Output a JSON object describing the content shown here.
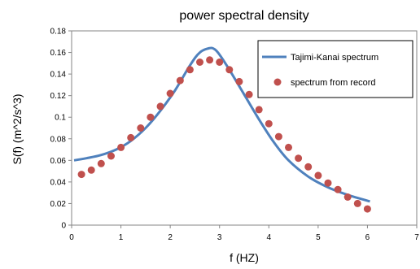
{
  "chart_data": {
    "type": "line",
    "title": "power spectral density",
    "xlabel": "f (HZ)",
    "ylabel": "S(f)   (m^2/s^3)",
    "xlim": [
      0,
      7
    ],
    "ylim": [
      0,
      0.18
    ],
    "x_ticks": [
      0,
      1,
      2,
      3,
      4,
      5,
      6,
      7
    ],
    "y_ticks": [
      0,
      0.02,
      0.04,
      0.06,
      0.08,
      0.1,
      0.12,
      0.14,
      0.16,
      0.18
    ],
    "x_tick_labels": [
      "0",
      "1",
      "2",
      "3",
      "4",
      "5",
      "6",
      "7"
    ],
    "y_tick_labels": [
      "0",
      "0.02",
      "0.04",
      "0.06",
      "0.08",
      "0.1",
      "0.12",
      "0.14",
      "0.16",
      "0.18"
    ],
    "grid": false,
    "legend_position": "top-right",
    "series": [
      {
        "name": "Tajimi-Kanai spectrum",
        "kind": "line",
        "color": "#4F81BD",
        "x": [
          0.05,
          0.3,
          0.6,
          0.9,
          1.2,
          1.5,
          1.8,
          2.1,
          2.4,
          2.6,
          2.8,
          2.9,
          3.0,
          3.2,
          3.5,
          3.8,
          4.1,
          4.4,
          4.8,
          5.2,
          5.6,
          6.05
        ],
        "y": [
          0.06,
          0.062,
          0.065,
          0.07,
          0.078,
          0.09,
          0.106,
          0.125,
          0.148,
          0.16,
          0.164,
          0.163,
          0.158,
          0.144,
          0.121,
          0.098,
          0.077,
          0.06,
          0.045,
          0.035,
          0.028,
          0.022
        ]
      },
      {
        "name": "spectrum from record",
        "kind": "scatter",
        "color": "#C0504D",
        "x": [
          0.2,
          0.4,
          0.6,
          0.8,
          1.0,
          1.2,
          1.4,
          1.6,
          1.8,
          2.0,
          2.2,
          2.4,
          2.6,
          2.8,
          3.0,
          3.2,
          3.4,
          3.6,
          3.8,
          4.0,
          4.2,
          4.4,
          4.6,
          4.8,
          5.0,
          5.2,
          5.4,
          5.6,
          5.8,
          6.0
        ],
        "y": [
          0.047,
          0.051,
          0.057,
          0.064,
          0.072,
          0.081,
          0.09,
          0.1,
          0.11,
          0.122,
          0.134,
          0.144,
          0.151,
          0.153,
          0.151,
          0.144,
          0.133,
          0.121,
          0.107,
          0.094,
          0.082,
          0.072,
          0.062,
          0.054,
          0.046,
          0.039,
          0.033,
          0.026,
          0.02,
          0.015
        ]
      }
    ]
  }
}
